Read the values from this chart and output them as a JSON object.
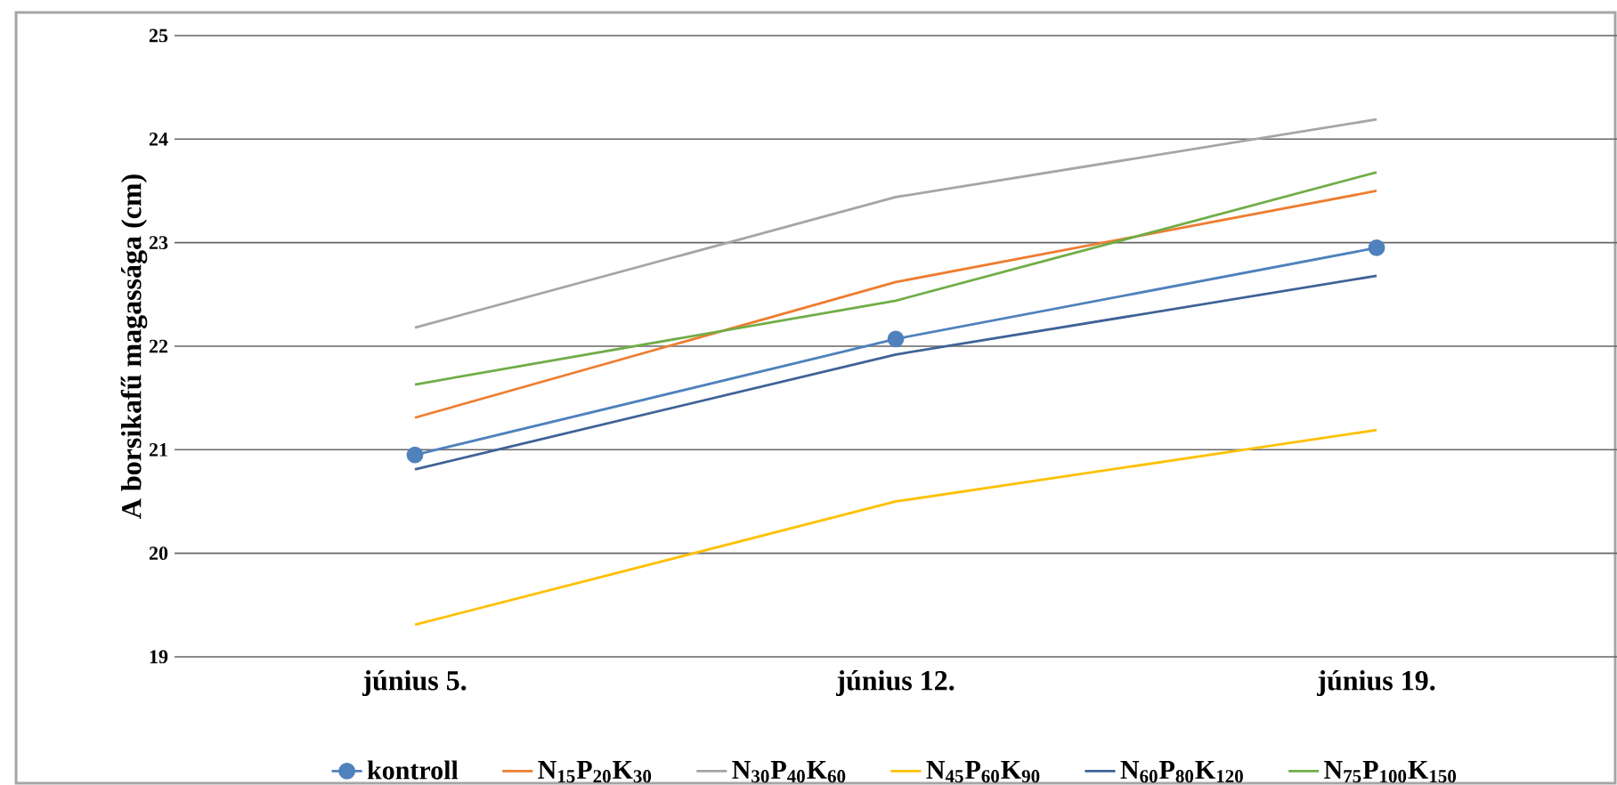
{
  "chart_data": {
    "type": "line",
    "ylabel": "A borsikafű magassága (cm)",
    "categories": [
      "június 5.",
      "június 12.",
      "június 19."
    ],
    "series": [
      {
        "name": "kontroll",
        "color": "#4f81bd",
        "marker": "circle",
        "values": [
          20.95,
          22.07,
          22.95
        ]
      },
      {
        "name": "N$_{15}$P$_{20}$K$_{30}$",
        "color": "#ed7d31",
        "values": [
          21.31,
          22.62,
          23.5
        ]
      },
      {
        "name": "N$_{30}$P$_{40}$K$_{60}$",
        "color": "#a5a5a5",
        "values": [
          22.18,
          23.44,
          24.19
        ]
      },
      {
        "name": "N$_{45}$P$_{60}$K$_{90}$",
        "color": "#ffc000",
        "values": [
          19.31,
          20.5,
          21.19
        ]
      },
      {
        "name": "N$_{60}$P$_{80}$K$_{120}$",
        "color": "#3e6296",
        "values": [
          20.81,
          21.92,
          22.68
        ]
      },
      {
        "name": "N$_{75}$P$_{100}$K$_{150}$",
        "color": "#70ad47",
        "values": [
          21.63,
          22.44,
          23.68
        ]
      }
    ],
    "ylim": [
      19,
      25
    ],
    "yticks": [
      19,
      20,
      21,
      22,
      23,
      24,
      25
    ],
    "grid": "y",
    "legend": "bottom"
  }
}
